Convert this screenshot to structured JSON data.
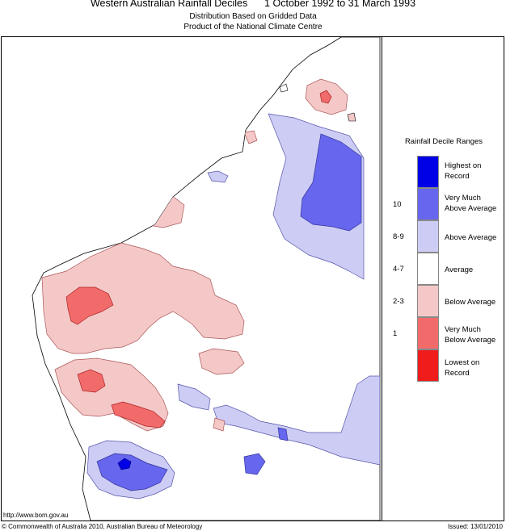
{
  "header": {
    "title": "Western Australian Rainfall Deciles      1 October 1992 to 31 March 1993",
    "subtitle_1": "Distribution Based on Gridded Data",
    "subtitle_2": "Product of the National Climate Centre"
  },
  "legend": {
    "title": "Rainfall Decile Ranges",
    "items": [
      {
        "label": "Highest on Record",
        "range": "",
        "color": "#0000e6"
      },
      {
        "label": "Very Much Above Average",
        "range": "10",
        "color": "#6666ee"
      },
      {
        "label": "Above Average",
        "range": "8-9",
        "color": "#ccccf5"
      },
      {
        "label": "Average",
        "range": "4-7",
        "color": "#ffffff"
      },
      {
        "label": "Below Average",
        "range": "2-3",
        "color": "#f5c8c8"
      },
      {
        "label": "Very Much Below Average",
        "range": "1",
        "color": "#f26b6b"
      },
      {
        "label": "Lowest on Record",
        "range": "",
        "color": "#f01c1c"
      }
    ]
  },
  "footer": {
    "url": "http://www.bom.gov.au",
    "copyright": "© Commonwealth of Australia 2010, Australian Bureau of Meteorology",
    "issued": "Issued: 13/01/2010"
  }
}
